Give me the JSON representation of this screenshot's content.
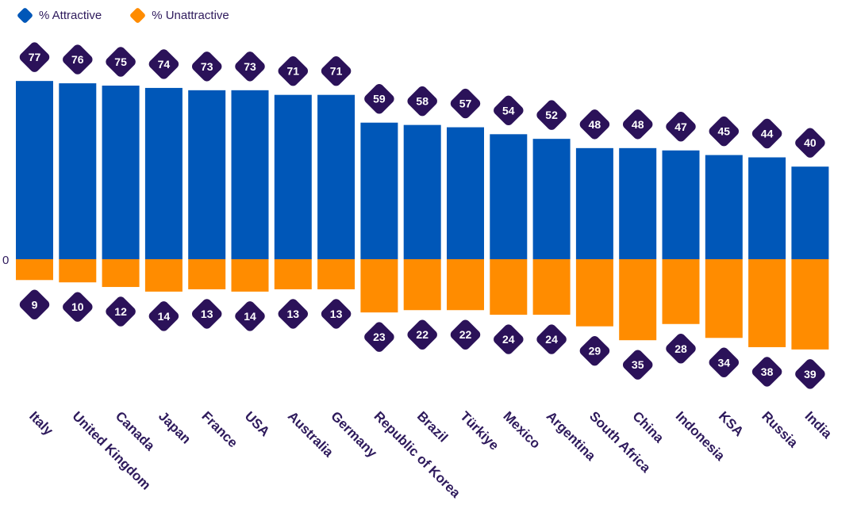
{
  "legend": [
    {
      "label": "% Attractive",
      "color": "#0057b8"
    },
    {
      "label": "% Unattractive",
      "color": "#ff8c00"
    }
  ],
  "chart_data": {
    "type": "bar",
    "title": "",
    "xlabel": "",
    "ylabel": "",
    "zero_label": "0",
    "categories": [
      "Italy",
      "United Kingdom",
      "Canada",
      "Japan",
      "France",
      "USA",
      "Australia",
      "Germany",
      "Republic of Korea",
      "Brazil",
      "Türkiye",
      "Mexico",
      "Argentina",
      "South Africa",
      "China",
      "Indonesia",
      "KSA",
      "Russia",
      "India"
    ],
    "series": [
      {
        "name": "% Attractive",
        "color": "#0057b8",
        "direction": "up",
        "values": [
          77,
          76,
          75,
          74,
          73,
          73,
          71,
          71,
          59,
          58,
          57,
          54,
          52,
          48,
          48,
          47,
          45,
          44,
          40
        ]
      },
      {
        "name": "% Unattractive",
        "color": "#ff8c00",
        "direction": "down",
        "values": [
          9,
          10,
          12,
          14,
          13,
          14,
          13,
          13,
          23,
          22,
          22,
          24,
          24,
          29,
          35,
          28,
          34,
          38,
          39
        ]
      }
    ],
    "label_badge_color": "#2b1259",
    "legend_position": "top-left",
    "grid": false
  }
}
